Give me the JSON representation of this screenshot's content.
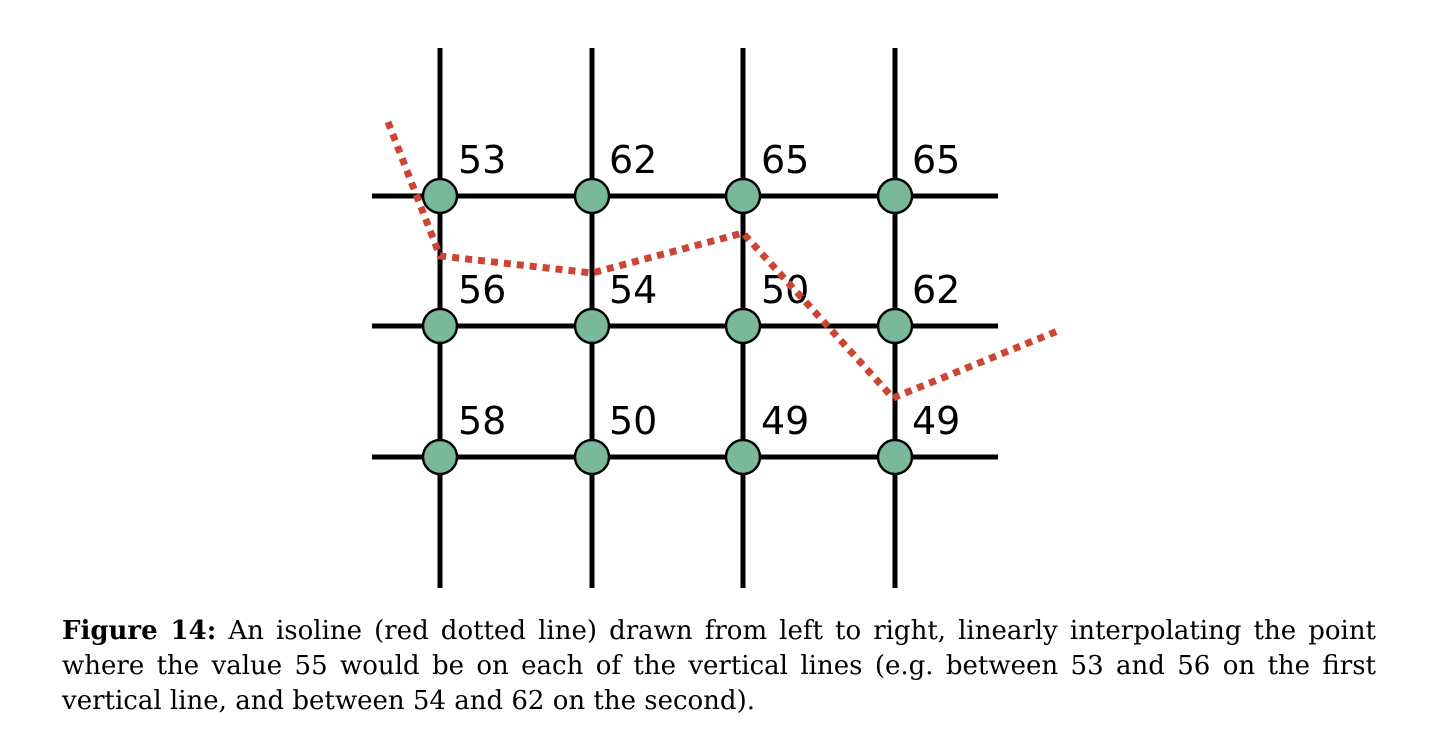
{
  "grid_values": [
    [
      "53",
      "62",
      "65",
      "65"
    ],
    [
      "56",
      "54",
      "50",
      "62"
    ],
    [
      "58",
      "50",
      "49",
      "49"
    ]
  ],
  "colors": {
    "node_fill": "#7ab89c",
    "isoline": "#cc4433",
    "grid": "#000000"
  },
  "caption": {
    "label": "Figure 14:",
    "text": "An isoline (red dotted line) drawn from left to right, linearly interpolating the point where the value 55 would be on each of the vertical lines (e.g.  between 53 and 56 on the first vertical line, and between 54 and 62 on the second)."
  }
}
